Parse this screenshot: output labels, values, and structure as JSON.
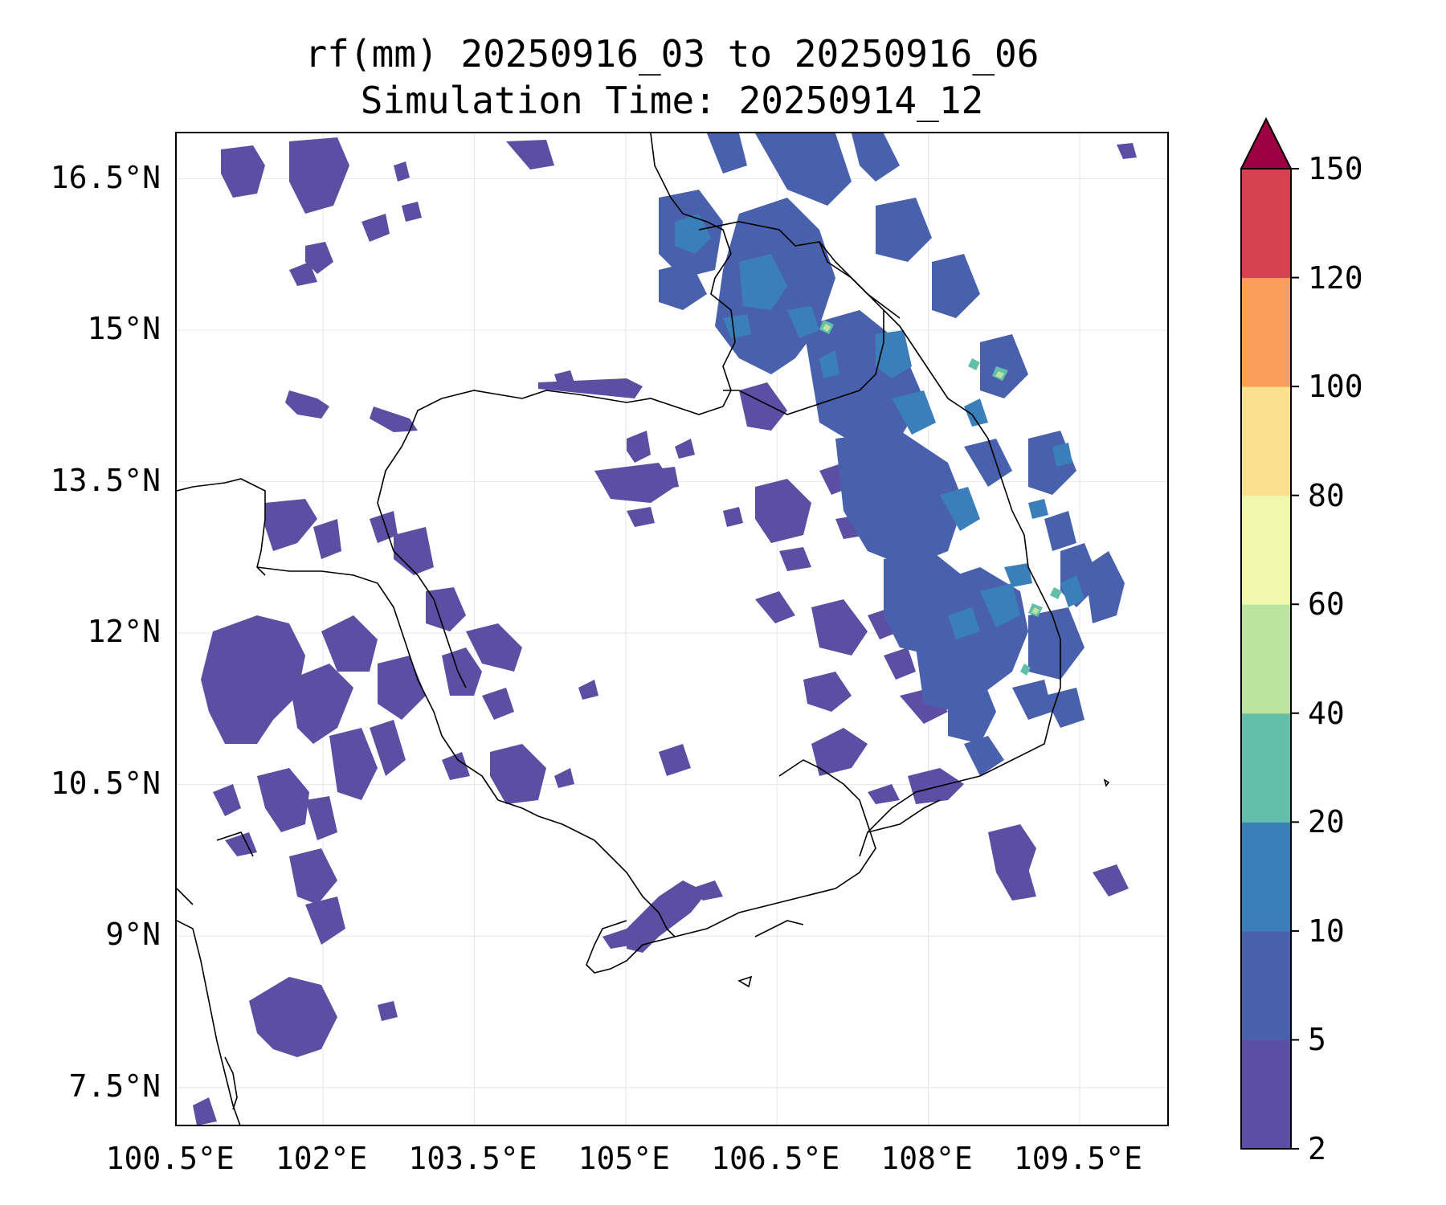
{
  "figure": {
    "title_line1": "rf(mm) 20250916_03 to 20250916_06",
    "title_line2": "Simulation Time: 20250914_12"
  },
  "map": {
    "lat_ticks": [
      "16.5°N",
      "15°N",
      "13.5°N",
      "12°N",
      "10.5°N",
      "9°N",
      "7.5°N"
    ],
    "lat_values": [
      16.5,
      15,
      13.5,
      12,
      10.5,
      9,
      7.5
    ],
    "lon_ticks": [
      "100.5°E",
      "102°E",
      "103.5°E",
      "105°E",
      "106.5°E",
      "108°E",
      "109.5°E"
    ],
    "lon_values": [
      100.5,
      102,
      103.5,
      105,
      106.5,
      108,
      109.5
    ],
    "lon_range": [
      100.55,
      110.4
    ],
    "lat_range": [
      7.1,
      16.95
    ],
    "grid": true
  },
  "colorbar": {
    "ticks": [
      "2",
      "5",
      "10",
      "20",
      "40",
      "60",
      "80",
      "100",
      "120",
      "150"
    ],
    "colors": [
      "#5b4ea3",
      "#4961ad",
      "#3b7fba",
      "#63bfa9",
      "#bde3a0",
      "#f1f8ad",
      "#fbe08e",
      "#fb9d5b",
      "#d5414f"
    ],
    "extend_color": "#9e0142",
    "extend": "max"
  }
}
